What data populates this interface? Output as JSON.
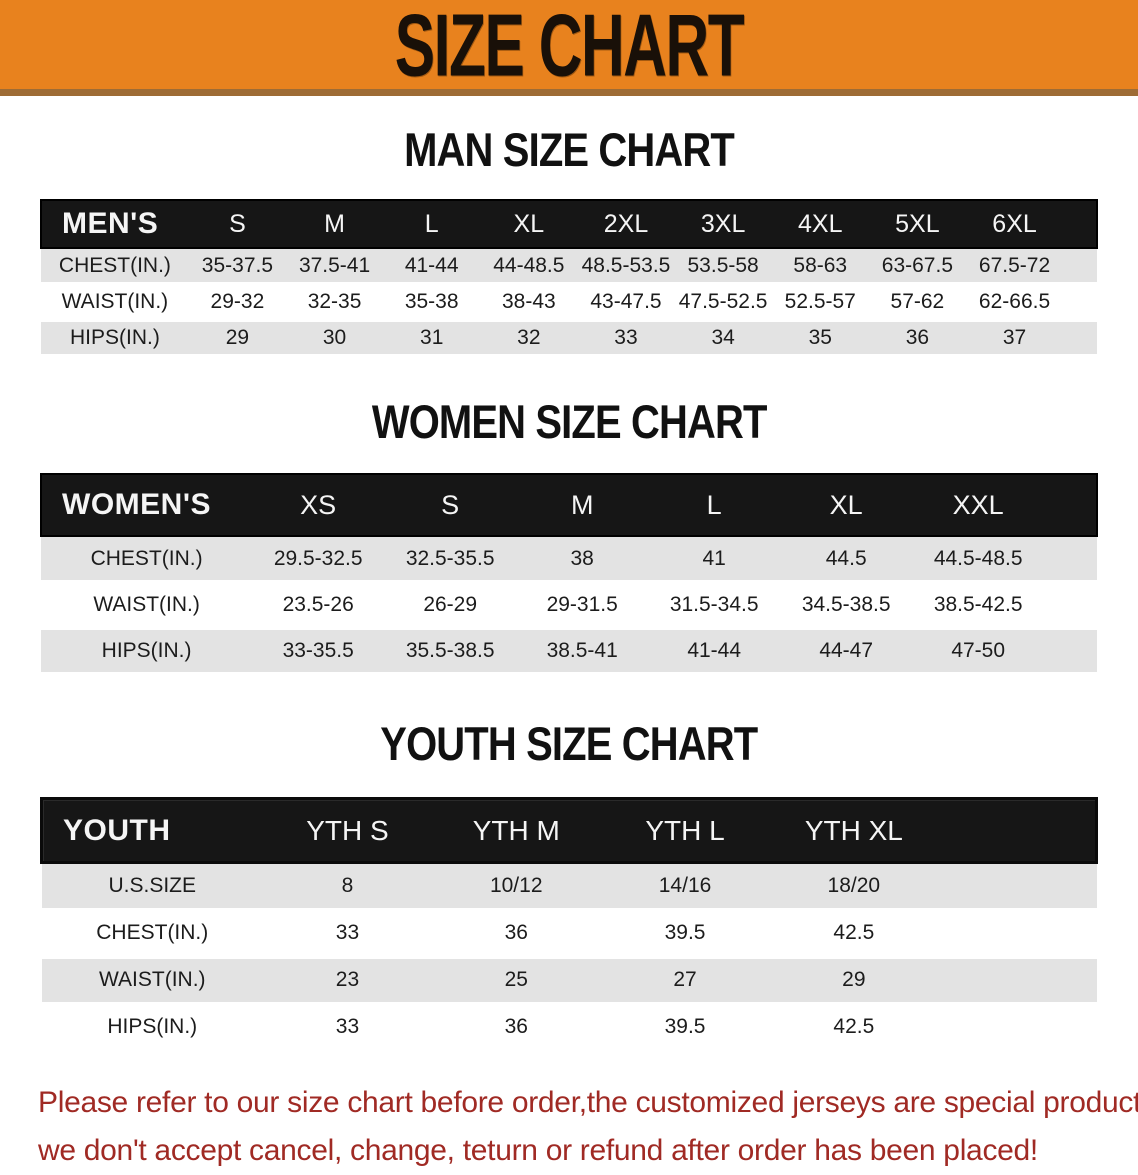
{
  "banner": {
    "title": "SIZE CHART",
    "bg_color": "#e8821e",
    "text_color": "#191008"
  },
  "sections": [
    {
      "title": "MAN SIZE CHART",
      "header_label": "MEN'S",
      "columns": [
        "S",
        "M",
        "L",
        "XL",
        "2XL",
        "3XL",
        "4XL",
        "5XL",
        "6XL"
      ],
      "rows": [
        {
          "label": "CHEST(IN.)",
          "values": [
            "35-37.5",
            "37.5-41",
            "41-44",
            "44-48.5",
            "48.5-53.5",
            "53.5-58",
            "58-63",
            "63-67.5",
            "67.5-72"
          ]
        },
        {
          "label": "WAIST(IN.)",
          "values": [
            "29-32",
            "32-35",
            "35-38",
            "38-43",
            "43-47.5",
            "47.5-52.5",
            "52.5-57",
            "57-62",
            "62-66.5"
          ]
        },
        {
          "label": "HIPS(IN.)",
          "values": [
            "29",
            "30",
            "31",
            "32",
            "33",
            "34",
            "35",
            "36",
            "37"
          ]
        }
      ]
    },
    {
      "title": "WOMEN SIZE CHART",
      "header_label": "WOMEN'S",
      "columns": [
        "XS",
        "S",
        "M",
        "L",
        "XL",
        "XXL"
      ],
      "rows": [
        {
          "label": "CHEST(IN.)",
          "values": [
            "29.5-32.5",
            "32.5-35.5",
            "38",
            "41",
            "44.5",
            "44.5-48.5"
          ]
        },
        {
          "label": "WAIST(IN.)",
          "values": [
            "23.5-26",
            "26-29",
            "29-31.5",
            "31.5-34.5",
            "34.5-38.5",
            "38.5-42.5"
          ]
        },
        {
          "label": "HIPS(IN.)",
          "values": [
            "33-35.5",
            "35.5-38.5",
            "38.5-41",
            "41-44",
            "44-47",
            "47-50"
          ]
        }
      ]
    },
    {
      "title": "YOUTH SIZE CHART",
      "header_label": "YOUTH",
      "columns": [
        "YTH S",
        "YTH M",
        "YTH L",
        "YTH XL"
      ],
      "rows": [
        {
          "label": "U.S.SIZE",
          "values": [
            "8",
            "10/12",
            "14/16",
            "18/20"
          ]
        },
        {
          "label": "CHEST(IN.)",
          "values": [
            "33",
            "36",
            "39.5",
            "42.5"
          ]
        },
        {
          "label": "WAIST(IN.)",
          "values": [
            "23",
            "25",
            "27",
            "29"
          ]
        },
        {
          "label": "HIPS(IN.)",
          "values": [
            "33",
            "36",
            "39.5",
            "42.5"
          ]
        }
      ]
    }
  ],
  "footer": {
    "line1": "Please refer to our size chart before order,the customized jerseys are special products,",
    "line2": "we don't accept cancel, change, teturn or refund after order has been placed!",
    "text_color": "#a02a24"
  }
}
